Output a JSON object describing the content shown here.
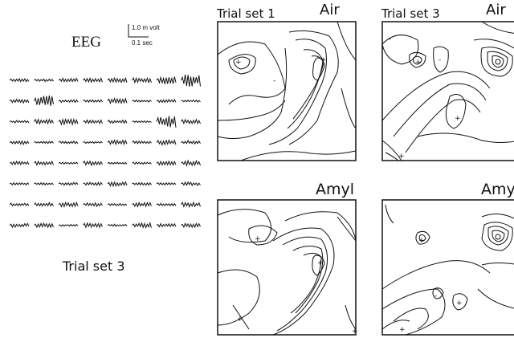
{
  "eeg": {
    "title": "EEG",
    "scale_voltage": "1.0 m volt",
    "scale_time": "0.1 sec",
    "trial_label": "Trial set 3",
    "rows": 8,
    "cols": 8
  },
  "panels": [
    {
      "id": "p1",
      "title": "Trial set 1",
      "condition": "Air"
    },
    {
      "id": "p2",
      "title": "Trial set 3",
      "condition": "Air"
    },
    {
      "id": "p3",
      "title": "",
      "condition": "Amyl"
    },
    {
      "id": "p4",
      "title": "",
      "condition": "Amyl"
    }
  ],
  "colors": {
    "ink": "#111111",
    "paper": "#ffffff"
  }
}
